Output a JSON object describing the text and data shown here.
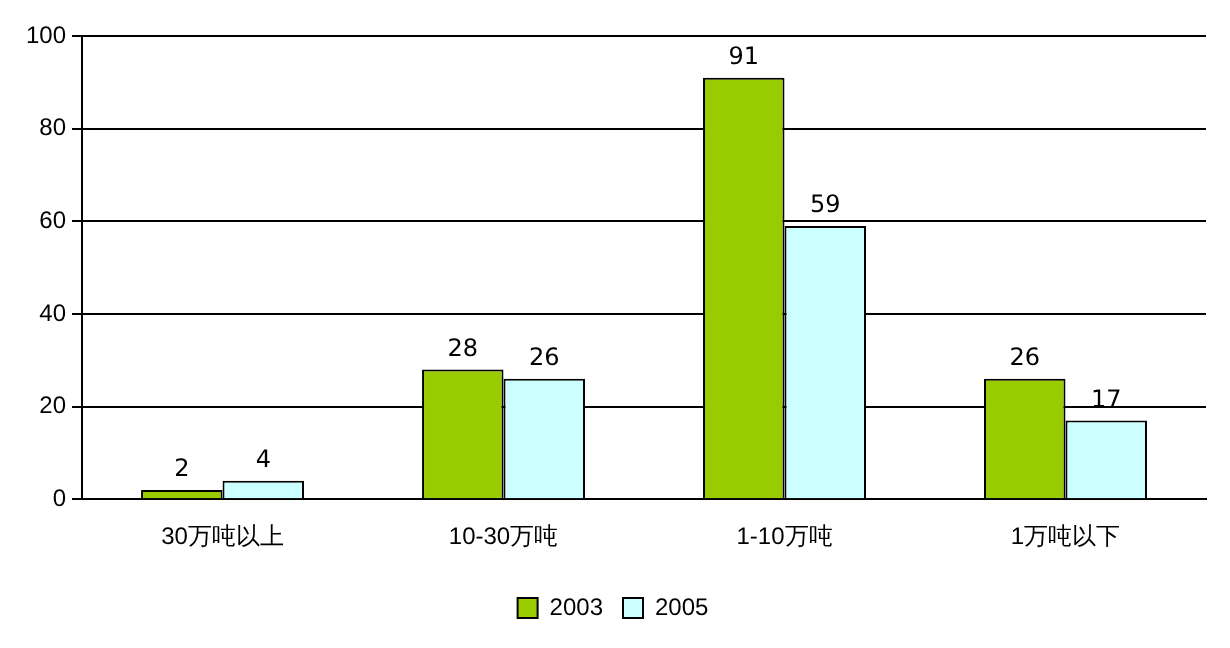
{
  "chart_data": {
    "type": "bar",
    "categories": [
      "30万吨以上",
      "10-30万吨",
      "1-10万吨",
      "1万吨以下"
    ],
    "series": [
      {
        "name": "2003",
        "color": "#99cc00",
        "values": [
          2,
          28,
          91,
          26
        ]
      },
      {
        "name": "2005",
        "color": "#ccffff",
        "values": [
          4,
          26,
          59,
          17
        ]
      }
    ],
    "ylim": [
      0,
      100
    ],
    "yticks": [
      0,
      20,
      40,
      60,
      80,
      100
    ],
    "grid": "y",
    "legend": "bottom",
    "data_labels": true
  }
}
